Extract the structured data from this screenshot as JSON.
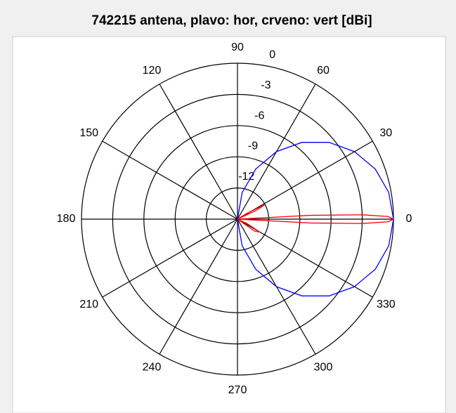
{
  "chart_data": {
    "type": "polar",
    "title": "742215 antena, plavo: hor, crveno: vert [dBi]",
    "rlim": [
      -15,
      0
    ],
    "rticks": [
      -12,
      -9,
      -6,
      -3,
      0
    ],
    "thetaticks": [
      0,
      30,
      60,
      90,
      120,
      150,
      180,
      210,
      240,
      270,
      300,
      330
    ],
    "series": [
      {
        "name": "hor",
        "color": "#0000ff",
        "theta": [
          270,
          280,
          290,
          300,
          310,
          320,
          330,
          340,
          350,
          0,
          10,
          20,
          30,
          40,
          50,
          60,
          70,
          80,
          90
        ],
        "values": [
          -15,
          -12.4,
          -9.87,
          -7.5,
          -5.36,
          -3.51,
          -2.01,
          -0.9,
          -0.23,
          0,
          -0.23,
          -0.9,
          -2.01,
          -3.51,
          -5.36,
          -7.5,
          -9.87,
          -12.4,
          -15
        ]
      },
      {
        "name": "vert",
        "color": "#ff0000",
        "theta": [
          320,
          325,
          330,
          335,
          340,
          355,
          357,
          358,
          359,
          0,
          1,
          2,
          3,
          5,
          20,
          25,
          28,
          32,
          35
        ],
        "values": [
          -15,
          -13,
          -12.5,
          -14,
          -15,
          -15,
          -8,
          -3,
          -0.5,
          0,
          -0.5,
          -3,
          -8,
          -15,
          -15,
          -13,
          -12,
          -14,
          -15
        ]
      }
    ]
  }
}
